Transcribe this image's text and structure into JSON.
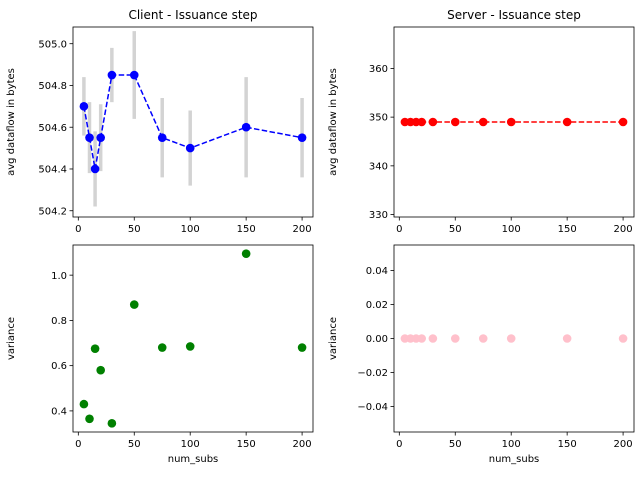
{
  "chart_data": [
    {
      "type": "line",
      "title": "Client - Issuance step",
      "xlabel": "",
      "ylabel": "avg dataflow in bytes",
      "xlim": [
        -4.75,
        209.75
      ],
      "ylim": [
        504.17,
        505.08
      ],
      "xticks": [
        0,
        50,
        100,
        150,
        200
      ],
      "yticks": [
        504.2,
        504.4,
        504.6,
        504.8,
        505.0
      ],
      "ytick_labels": [
        "504.2",
        "504.4",
        "504.6",
        "504.8",
        "505.0"
      ],
      "grid": false,
      "color": "#0000ff",
      "errbar_color": "#d3d3d3",
      "linestyle": "dashed",
      "x": [
        5,
        10,
        15,
        20,
        30,
        50,
        75,
        100,
        150,
        200
      ],
      "y": [
        504.7,
        504.55,
        504.4,
        504.55,
        504.85,
        504.85,
        504.55,
        504.5,
        504.6,
        504.55
      ],
      "yerr": [
        0.14,
        0.17,
        0.18,
        0.16,
        0.13,
        0.21,
        0.19,
        0.18,
        0.24,
        0.19
      ]
    },
    {
      "type": "line",
      "title": "Server - Issuance step",
      "xlabel": "",
      "ylabel": "avg dataflow in bytes",
      "xlim": [
        -4.75,
        209.75
      ],
      "ylim": [
        329.5,
        368.5
      ],
      "xticks": [
        0,
        50,
        100,
        150,
        200
      ],
      "yticks": [
        330,
        340,
        350,
        360
      ],
      "ytick_labels": [
        "330",
        "340",
        "350",
        "360"
      ],
      "grid": false,
      "color": "#ff0000",
      "errbar_color": "#d3d3d3",
      "linestyle": "dashed",
      "x": [
        5,
        10,
        15,
        20,
        30,
        50,
        75,
        100,
        150,
        200
      ],
      "y": [
        349,
        349,
        349,
        349,
        349,
        349,
        349,
        349,
        349,
        349
      ],
      "yerr": [
        0,
        0,
        0,
        0,
        0,
        0,
        0,
        0,
        0,
        0
      ]
    },
    {
      "type": "scatter",
      "title": "",
      "xlabel": "num_subs",
      "ylabel": "variance",
      "xlim": [
        -4.75,
        209.75
      ],
      "ylim": [
        0.3067,
        1.1333
      ],
      "xticks": [
        0,
        50,
        100,
        150,
        200
      ],
      "yticks": [
        0.4,
        0.6,
        0.8,
        1.0
      ],
      "ytick_labels": [
        "0.4",
        "0.6",
        "0.8",
        "1.0"
      ],
      "grid": false,
      "color": "#008000",
      "x": [
        5,
        10,
        15,
        20,
        30,
        50,
        75,
        100,
        150,
        200
      ],
      "y": [
        0.43,
        0.365,
        0.675,
        0.58,
        0.345,
        0.87,
        0.68,
        0.685,
        1.095,
        0.68
      ]
    },
    {
      "type": "scatter",
      "title": "",
      "xlabel": "num_subs",
      "ylabel": "variance",
      "xlim": [
        -4.75,
        209.75
      ],
      "ylim": [
        -0.055,
        0.055
      ],
      "xticks": [
        0,
        50,
        100,
        150,
        200
      ],
      "yticks": [
        -0.04,
        -0.02,
        0.0,
        0.02,
        0.04
      ],
      "ytick_labels": [
        "−0.04",
        "−0.02",
        "0.00",
        "0.02",
        "0.04"
      ],
      "grid": false,
      "color": "#ffc0cb",
      "x": [
        5,
        10,
        15,
        20,
        30,
        50,
        75,
        100,
        150,
        200
      ],
      "y": [
        0,
        0,
        0,
        0,
        0,
        0,
        0,
        0,
        0,
        0
      ]
    }
  ]
}
